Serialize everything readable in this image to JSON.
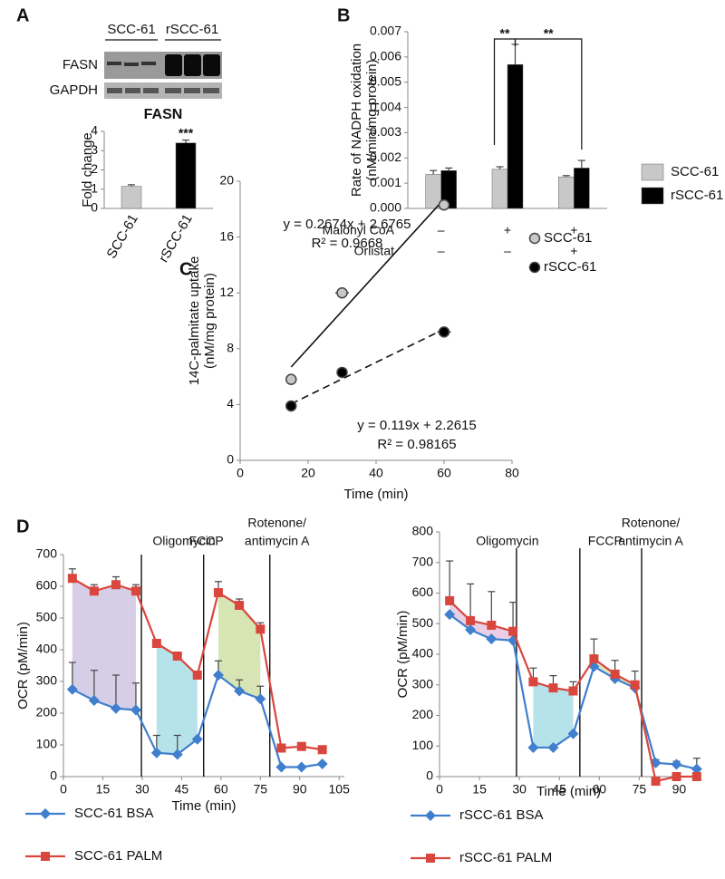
{
  "panel_labels": [
    "A",
    "B",
    "C",
    "D"
  ],
  "blot": {
    "groups": [
      "SCC-61",
      "rSCC-61"
    ],
    "rows": [
      "FASN",
      "GAPDH"
    ]
  },
  "chart_data": [
    {
      "type": "bar",
      "title": "FASN",
      "y_label": "Fold change",
      "categories": [
        "SCC-61",
        "rSCC-61"
      ],
      "values": [
        1.15,
        3.4
      ],
      "errors": [
        0.08,
        0.15
      ],
      "value_annotations": [
        null,
        "***"
      ],
      "colors": [
        "#c8c8c8",
        "#000000"
      ],
      "ylim": [
        0,
        4
      ],
      "yticks": [
        0,
        1,
        2,
        3,
        4
      ]
    },
    {
      "type": "grouped_bar",
      "y_label": [
        "Rate of NADPH oxidation",
        "(nM/min/mg protein)"
      ],
      "categories": [
        null,
        null,
        null
      ],
      "conditions": [
        {
          "name": "Malonyl CoA",
          "values": [
            "–",
            "+",
            "+"
          ]
        },
        {
          "name": "Orlistat",
          "values": [
            "–",
            "–",
            "+"
          ]
        }
      ],
      "series": [
        {
          "name": "SCC-61",
          "color": "#c8c8c8",
          "values": [
            0.00135,
            0.00155,
            0.00125
          ],
          "errors": [
            0.00015,
            0.0001,
            5e-05
          ]
        },
        {
          "name": "rSCC-61",
          "color": "#000000",
          "values": [
            0.0015,
            0.0057,
            0.0016
          ],
          "errors": [
            0.0001,
            0.0008,
            0.0003
          ]
        }
      ],
      "significance": [
        "**",
        "**"
      ],
      "ylim": [
        0,
        0.007
      ],
      "yticks": [
        {
          "value": 0,
          "label": "0.000"
        },
        {
          "value": 0.001,
          "label": "0.001"
        },
        {
          "value": 0.002,
          "label": "0.002"
        },
        {
          "value": 0.003,
          "label": "0.003"
        },
        {
          "value": 0.004,
          "label": "0.004"
        },
        {
          "value": 0.005,
          "label": "0.005"
        },
        {
          "value": 0.006,
          "label": "0.006"
        },
        {
          "value": 0.007,
          "label": "0.007"
        }
      ]
    },
    {
      "type": "scatter",
      "x_label": "Time (min)",
      "y_label": [
        "14C-palmitate uptake",
        "(nM/mg protein)"
      ],
      "series": [
        {
          "name": "SCC-61",
          "color": "#c8c8c8",
          "line_style": "solid",
          "x": [
            15,
            30,
            60
          ],
          "values": [
            5.8,
            12,
            18.3
          ],
          "x_errors": [
            0,
            2,
            0
          ],
          "fit": {
            "slope": 0.2674,
            "intercept": 2.6765,
            "label": "y = 0.2674x + 2.6765",
            "r2_label": "R² = 0.9668"
          }
        },
        {
          "name": "rSCC-61",
          "color": "#000000",
          "line_style": "dashed",
          "x": [
            15,
            30,
            60
          ],
          "values": [
            3.9,
            6.3,
            9.2
          ],
          "x_errors": [
            0,
            0,
            2
          ],
          "fit": {
            "slope": 0.119,
            "intercept": 2.2615,
            "label": "y = 0.119x + 2.2615",
            "r2_label": "R² = 0.98165"
          }
        }
      ],
      "xlim": [
        0,
        80
      ],
      "xticks": [
        0,
        20,
        40,
        60,
        80
      ],
      "ylim": [
        0,
        20
      ],
      "yticks": [
        0,
        4,
        8,
        12,
        16,
        20
      ]
    },
    {
      "type": "line",
      "x_label": "Time (min)",
      "y_label": "OCR (pM/min)",
      "x": [
        3.4,
        11.7,
        20,
        27.6,
        35.5,
        43.4,
        51,
        59,
        67,
        75,
        83,
        90.7,
        98.6
      ],
      "series": [
        {
          "name": "SCC-61 BSA",
          "color": "#3f7fce",
          "marker": "diamond",
          "values": [
            275,
            240,
            215,
            210,
            75,
            70,
            118,
            320,
            270,
            245,
            30,
            30,
            40
          ],
          "errors": [
            85,
            95,
            105,
            85,
            55,
            60,
            0,
            45,
            35,
            40,
            0,
            0,
            0
          ]
        },
        {
          "name": "SCC-61 PALM",
          "color": "#d9463e",
          "marker": "square",
          "values": [
            625,
            585,
            605,
            585,
            420,
            380,
            320,
            580,
            540,
            465,
            90,
            95,
            85
          ],
          "errors": [
            30,
            20,
            25,
            20,
            0,
            0,
            0,
            35,
            20,
            20,
            0,
            0,
            0
          ]
        }
      ],
      "annotations": [
        {
          "text": [
            "Oligomycin"
          ],
          "x": 29.7
        },
        {
          "text": [
            "FCCP"
          ],
          "x": 53.4
        },
        {
          "text": [
            "Rotenone/",
            "antimycin A"
          ],
          "x": 78.6
        }
      ],
      "shade_colors": [
        "#cfc5e2",
        "#a9dde6",
        "#cfe0a6"
      ],
      "xlim": [
        0,
        107
      ],
      "xticks": [
        0,
        15,
        30,
        45,
        60,
        75,
        90,
        105
      ],
      "ylim": [
        0,
        700
      ],
      "yticks": [
        0,
        100,
        200,
        300,
        400,
        500,
        600,
        700
      ]
    },
    {
      "type": "line",
      "x_label": "Time (min)",
      "y_label": "OCR (pM/min)",
      "x": [
        3.8,
        11.6,
        19.5,
        27.6,
        35.2,
        42.7,
        50.2,
        58,
        65.9,
        73.4,
        81.2,
        89,
        96.6
      ],
      "series": [
        {
          "name": "rSCC-61 BSA",
          "color": "#3f7fce",
          "marker": "diamond",
          "values": [
            530,
            480,
            450,
            445,
            95,
            95,
            140,
            360,
            320,
            290,
            45,
            40,
            25
          ],
          "errors": [
            0,
            0,
            0,
            0,
            0,
            0,
            0,
            0,
            0,
            0,
            10,
            10,
            35
          ]
        },
        {
          "name": "rSCC-61 PALM",
          "color": "#d9463e",
          "marker": "square",
          "values": [
            575,
            510,
            495,
            475,
            310,
            290,
            280,
            385,
            335,
            300,
            -15,
            0,
            0
          ],
          "errors": [
            130,
            120,
            110,
            95,
            45,
            40,
            30,
            65,
            45,
            45,
            0,
            0,
            0
          ]
        }
      ],
      "annotations": [
        {
          "text": [
            "Oligomycin"
          ],
          "x": 28.9
        },
        {
          "text": [
            "FCCP"
          ],
          "x": 52.7
        },
        {
          "text": [
            "Rotenone/",
            "antimycin A"
          ],
          "x": 75.9
        }
      ],
      "shade_colors": [
        "#e5c6e0",
        "#a9dde6",
        "#d5e4b2"
      ],
      "xlim": [
        0,
        97
      ],
      "xticks": [
        0,
        15,
        30,
        45,
        60,
        75,
        90
      ],
      "ylim": [
        0,
        800
      ],
      "yticks": [
        0,
        100,
        200,
        300,
        400,
        500,
        600,
        700,
        800
      ]
    }
  ]
}
